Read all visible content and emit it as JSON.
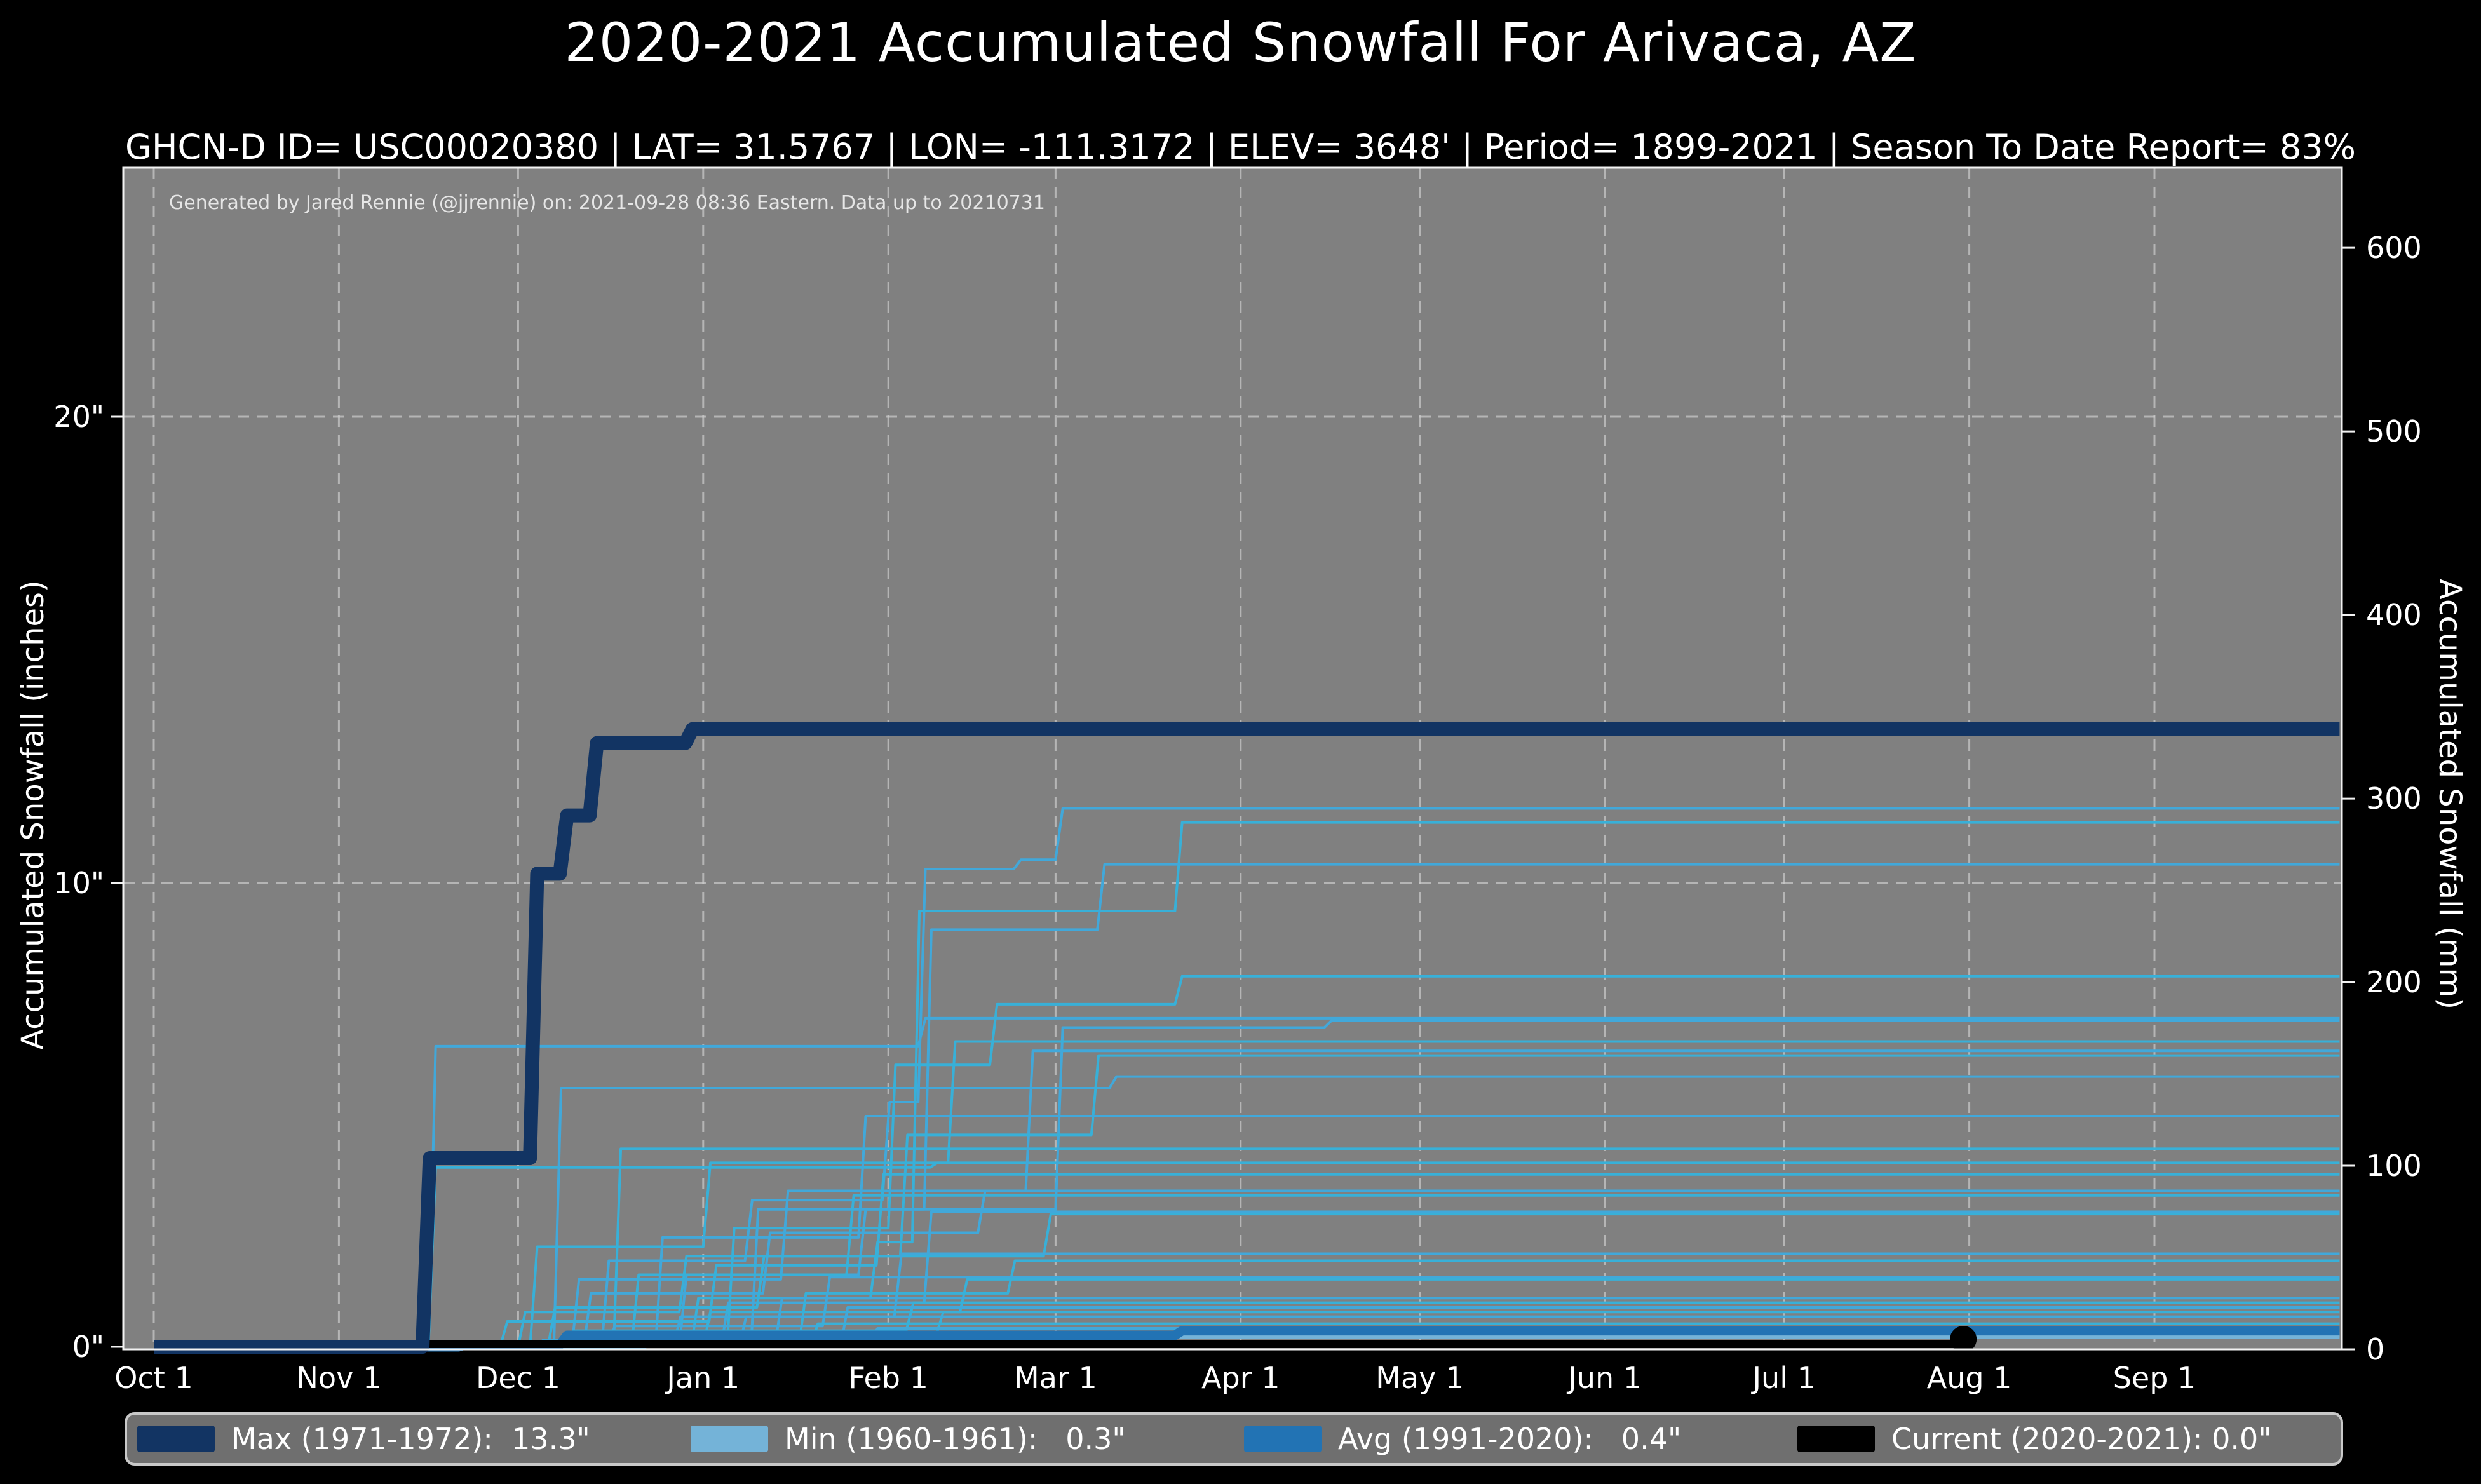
{
  "header": {
    "title": "2020-2021 Accumulated Snowfall For Arivaca, AZ",
    "subtitle": "GHCN-D ID= USC00020380 | LAT= 31.5767 | LON= -111.3172 | ELEV= 3648' | Period= 1899-2021 | Season To Date Report= 83%"
  },
  "attribution": "Generated by Jared Rennie (@jjrennie) on: 2021-09-28 08:36 Eastern. Data up to 20210731",
  "colors": {
    "figure_bg": "#000000",
    "plot_bg": "#808080",
    "gridline": "#cccccc",
    "spine": "#f2f2f2",
    "text": "#ffffff",
    "max_line": "#123463",
    "min_line": "#74b3d8",
    "avg_line": "#2273b4",
    "current_line": "#000000",
    "historical_a": "#41a8da",
    "historical_b": "#38b0d8",
    "legend_bg": "#6f6f6f",
    "legend_border": "#c9c9c9"
  },
  "legend": {
    "items": [
      {
        "key": "max",
        "label": "Max (1971-1972):  13.3\"",
        "color": "#123463"
      },
      {
        "key": "min",
        "label": "Min (1960-1961):   0.3\"",
        "color": "#74b3d8"
      },
      {
        "key": "avg",
        "label": "Avg (1991-2020):   0.4\"",
        "color": "#2273b4"
      },
      {
        "key": "current",
        "label": "Current (2020-2021): 0.0\"",
        "color": "#000000"
      }
    ]
  },
  "chart_data": {
    "type": "line",
    "title": "2020-2021 Accumulated Snowfall For Arivaca, AZ",
    "x_unit": "days since Oct 1",
    "xlabel": "",
    "ylabel_left": "Accumulated Snowfall (inches)",
    "ylabel_right": "Accumulated Snowfall (mm)",
    "ylim_inches": [
      0,
      25.4
    ],
    "grid": true,
    "legend_position": "bottom",
    "x_ticks": [
      {
        "label": "Oct 1",
        "day": 0
      },
      {
        "label": "Nov 1",
        "day": 31
      },
      {
        "label": "Dec 1",
        "day": 61
      },
      {
        "label": "Jan 1",
        "day": 92
      },
      {
        "label": "Feb 1",
        "day": 123
      },
      {
        "label": "Mar 1",
        "day": 151
      },
      {
        "label": "Apr 1",
        "day": 182
      },
      {
        "label": "May 1",
        "day": 212
      },
      {
        "label": "Jun 1",
        "day": 243
      },
      {
        "label": "Jul 1",
        "day": 273
      },
      {
        "label": "Aug 1",
        "day": 304
      },
      {
        "label": "Sep 1",
        "day": 335
      }
    ],
    "y_ticks_left_inches": [
      {
        "label": "0\"",
        "value": 0
      },
      {
        "label": "10\"",
        "value": 10
      },
      {
        "label": "20\"",
        "value": 20
      }
    ],
    "y_ticks_right_mm": [
      {
        "label": "0",
        "value": 0
      },
      {
        "label": "100",
        "value": 100
      },
      {
        "label": "200",
        "value": 200
      },
      {
        "label": "300",
        "value": 300
      },
      {
        "label": "400",
        "value": 400
      },
      {
        "label": "500",
        "value": 500
      },
      {
        "label": "600",
        "value": 600
      }
    ],
    "series": {
      "max": {
        "name": "Max (1971-1972)",
        "total_inches": 13.3,
        "width": 22,
        "points": [
          [
            45,
            4.1
          ],
          [
            63,
            10.2
          ],
          [
            68,
            11.45
          ],
          [
            73,
            13.0
          ],
          [
            89,
            13.3
          ]
        ],
        "end_day": 366
      },
      "min": {
        "name": "Min (1960-1961)",
        "total_inches": 0.3,
        "width": 10,
        "points": [
          [
            82,
            0.3
          ]
        ],
        "end_day": 366
      },
      "avg": {
        "name": "Avg (1991-2020)",
        "total_inches": 0.4,
        "width": 15,
        "points": [
          [
            51,
            0.1
          ],
          [
            68,
            0.3
          ],
          [
            171,
            0.4
          ]
        ],
        "end_day": 366
      },
      "current": {
        "name": "Current (2020-2021)",
        "total_inches": 0.0,
        "width": 12,
        "points": [],
        "end_day": 303,
        "end_dot": true
      }
    },
    "historical_seasons": [
      {
        "points": [
          [
            46,
            6.5
          ],
          [
            128,
            7.1
          ]
        ]
      },
      {
        "points": [
          [
            46,
            3.9
          ],
          [
            130,
            4.0
          ]
        ]
      },
      {
        "points": [
          [
            67,
            5.6
          ],
          [
            160,
            5.85
          ]
        ]
      },
      {
        "points": [
          [
            77,
            4.3
          ]
        ]
      },
      {
        "points": [
          [
            75,
            1.9
          ],
          [
            99,
            3.2
          ],
          [
            122,
            5.3
          ],
          [
            128,
            10.3
          ],
          [
            144,
            10.5
          ],
          [
            151,
            11.6
          ]
        ]
      },
      {
        "points": [
          [
            90,
            1.1
          ],
          [
            120,
            2.3
          ],
          [
            127,
            9.4
          ],
          [
            171,
            11.3
          ]
        ]
      },
      {
        "points": [
          [
            88,
            1.6
          ],
          [
            118,
            3.0
          ],
          [
            129,
            9.0
          ],
          [
            158,
            10.4
          ]
        ]
      },
      {
        "points": [
          [
            96,
            2.6
          ],
          [
            123,
            6.1
          ],
          [
            140,
            7.4
          ],
          [
            171,
            8.0
          ]
        ]
      },
      {
        "points": [
          [
            100,
            3.0
          ],
          [
            151,
            6.9
          ],
          [
            196,
            7.05
          ]
        ]
      },
      {
        "points": [
          [
            63,
            2.2
          ],
          [
            92,
            4.0
          ],
          [
            133,
            6.6
          ]
        ]
      },
      {
        "points": [
          [
            70,
            1.5
          ],
          [
            105,
            3.4
          ],
          [
            146,
            6.4
          ]
        ]
      },
      {
        "points": [
          [
            61,
            0.8
          ],
          [
            88,
            2.0
          ],
          [
            125,
            4.6
          ],
          [
            157,
            6.3
          ]
        ]
      },
      {
        "points": [
          [
            84,
            2.4
          ],
          [
            118,
            5.0
          ]
        ]
      },
      {
        "points": [
          [
            58,
            0.6
          ],
          [
            93,
            1.8
          ],
          [
            121,
            3.75
          ]
        ]
      },
      {
        "points": [
          [
            72,
            1.2
          ],
          [
            102,
            2.5
          ],
          [
            138,
            3.4
          ]
        ]
      },
      {
        "points": [
          [
            80,
            1.6
          ],
          [
            116,
            3.3
          ]
        ]
      },
      {
        "points": [
          [
            95,
            1.0
          ],
          [
            129,
            2.95
          ]
        ]
      },
      {
        "points": [
          [
            66,
            0.9
          ],
          [
            101,
            2.0
          ],
          [
            149,
            2.9
          ]
        ]
      },
      {
        "points": [
          [
            87,
            0.7
          ],
          [
            124,
            2.05
          ]
        ]
      },
      {
        "points": [
          [
            108,
            1.2
          ],
          [
            143,
            1.9
          ]
        ]
      },
      {
        "points": [
          [
            76,
            0.5
          ],
          [
            112,
            1.55
          ]
        ]
      },
      {
        "points": [
          [
            92,
            0.8
          ],
          [
            135,
            1.5
          ]
        ]
      },
      {
        "points": [
          [
            104,
            1.1
          ]
        ]
      },
      {
        "points": [
          [
            69,
            0.4
          ],
          [
            126,
            1.0
          ]
        ]
      },
      {
        "points": [
          [
            115,
            0.9
          ]
        ]
      },
      {
        "points": [
          [
            83,
            0.3
          ],
          [
            131,
            0.8
          ]
        ]
      },
      {
        "points": [
          [
            98,
            0.7
          ]
        ]
      },
      {
        "points": [
          [
            110,
            0.55
          ]
        ]
      },
      {
        "points": [
          [
            64,
            0.2
          ],
          [
            120,
            0.45
          ]
        ]
      },
      {
        "points": [
          [
            137,
            0.35
          ]
        ]
      },
      {
        "points": [
          [
            152,
            0.3
          ]
        ]
      }
    ]
  }
}
